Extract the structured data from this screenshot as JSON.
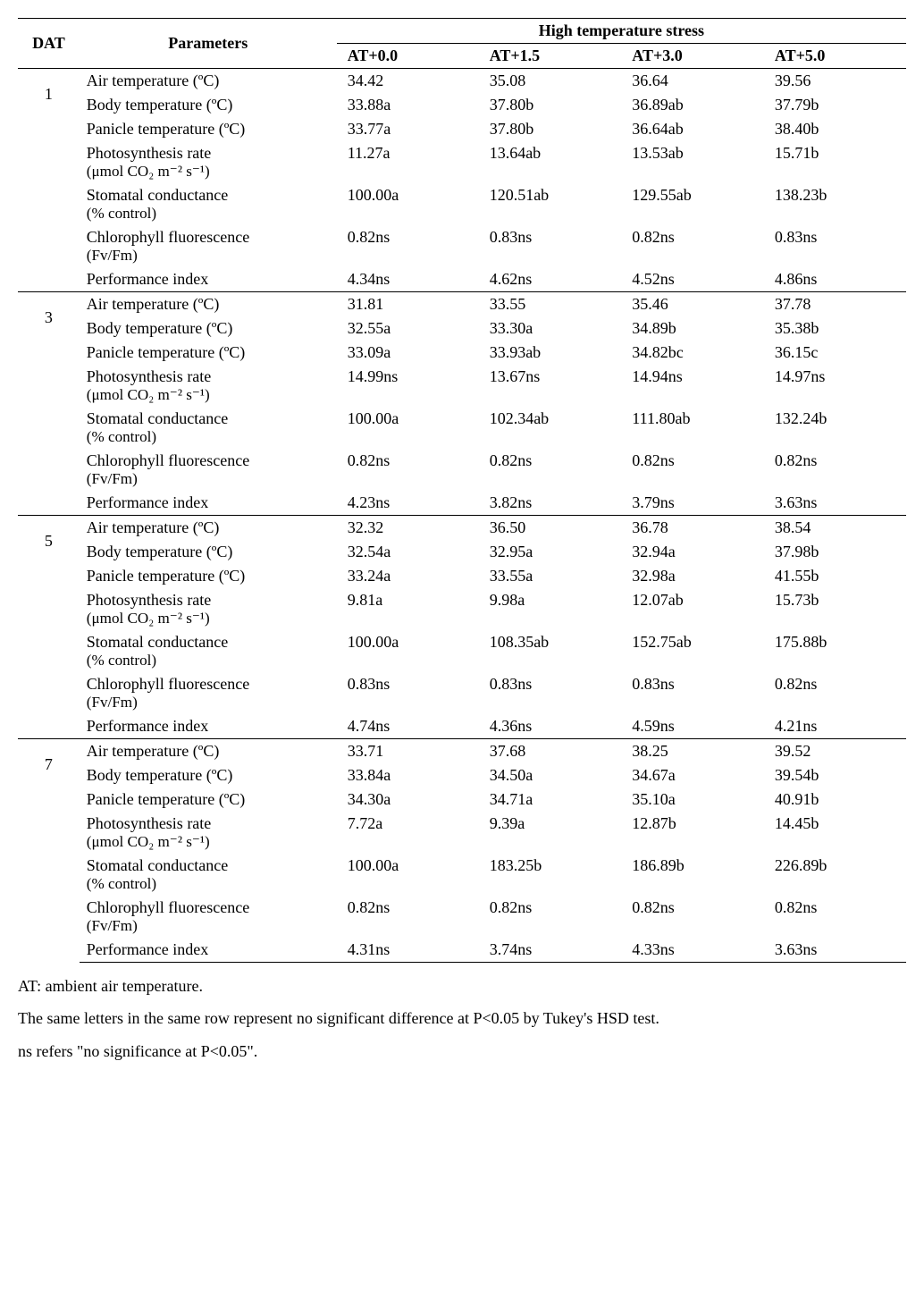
{
  "headers": {
    "col1": "DAT",
    "col2": "Parameters",
    "spanHeader": "High temperature stress",
    "treatments": [
      "AT+0.0",
      "AT+1.5",
      "AT+3.0",
      "AT+5.0"
    ]
  },
  "parameters": [
    {
      "main": "Air temperature (ºC)",
      "unit": ""
    },
    {
      "main": "Body temperature (ºC)",
      "unit": ""
    },
    {
      "main": "Panicle temperature (ºC)",
      "unit": ""
    },
    {
      "main": "Photosynthesis rate",
      "unit": "(μmol CO₂ m⁻² s⁻¹)"
    },
    {
      "main": "Stomatal conductance",
      "unit": "(% control)"
    },
    {
      "main": "Chlorophyll fluorescence",
      "unit": "(Fv/Fm)"
    },
    {
      "main": "Performance index",
      "unit": ""
    }
  ],
  "groups": [
    {
      "dat": "1",
      "rows": [
        [
          "34.42",
          "35.08",
          "36.64",
          "39.56"
        ],
        [
          "33.88a",
          "37.80b",
          "36.89ab",
          "37.79b"
        ],
        [
          "33.77a",
          "37.80b",
          "36.64ab",
          "38.40b"
        ],
        [
          "11.27a",
          "13.64ab",
          "13.53ab",
          "15.71b"
        ],
        [
          "100.00a",
          "120.51ab",
          "129.55ab",
          "138.23b"
        ],
        [
          "0.82ns",
          "0.83ns",
          "0.82ns",
          "0.83ns"
        ],
        [
          "4.34ns",
          "4.62ns",
          "4.52ns",
          "4.86ns"
        ]
      ]
    },
    {
      "dat": "3",
      "rows": [
        [
          "31.81",
          "33.55",
          "35.46",
          "37.78"
        ],
        [
          "32.55a",
          "33.30a",
          "34.89b",
          "35.38b"
        ],
        [
          "33.09a",
          "33.93ab",
          "34.82bc",
          "36.15c"
        ],
        [
          "14.99ns",
          "13.67ns",
          "14.94ns",
          "14.97ns"
        ],
        [
          "100.00a",
          "102.34ab",
          "111.80ab",
          "132.24b"
        ],
        [
          "0.82ns",
          "0.82ns",
          "0.82ns",
          "0.82ns"
        ],
        [
          "4.23ns",
          "3.82ns",
          "3.79ns",
          "3.63ns"
        ]
      ]
    },
    {
      "dat": "5",
      "rows": [
        [
          "32.32",
          "36.50",
          "36.78",
          "38.54"
        ],
        [
          "32.54a",
          "32.95a",
          "32.94a",
          "37.98b"
        ],
        [
          "33.24a",
          "33.55a",
          "32.98a",
          "41.55b"
        ],
        [
          "9.81a",
          "9.98a",
          "12.07ab",
          "15.73b"
        ],
        [
          "100.00a",
          "108.35ab",
          "152.75ab",
          "175.88b"
        ],
        [
          "0.83ns",
          "0.83ns",
          "0.83ns",
          "0.82ns"
        ],
        [
          "4.74ns",
          "4.36ns",
          "4.59ns",
          "4.21ns"
        ]
      ]
    },
    {
      "dat": "7",
      "rows": [
        [
          "33.71",
          "37.68",
          "38.25",
          "39.52"
        ],
        [
          "33.84a",
          "34.50a",
          "34.67a",
          "39.54b"
        ],
        [
          "34.30a",
          "34.71a",
          "35.10a",
          "40.91b"
        ],
        [
          "7.72a",
          "9.39a",
          "12.87b",
          "14.45b"
        ],
        [
          "100.00a",
          "183.25b",
          "186.89b",
          "226.89b"
        ],
        [
          "0.82ns",
          "0.82ns",
          "0.82ns",
          "0.82ns"
        ],
        [
          "4.31ns",
          "3.74ns",
          "4.33ns",
          "3.63ns"
        ]
      ]
    }
  ],
  "footnotes": {
    "line1": "AT: ambient air temperature.",
    "line2": "The same letters in the same row represent no significant difference at P<0.05 by Tukey's HSD test.",
    "line3": "ns refers \"no significance at P<0.05\"."
  },
  "style": {
    "font_family": "Georgia, Times New Roman, serif",
    "base_font_size": 18,
    "border_color": "#000000",
    "background_color": "#ffffff",
    "text_color": "#000000",
    "col_widths": {
      "dat": 70,
      "param": 300,
      "value": 165
    }
  }
}
